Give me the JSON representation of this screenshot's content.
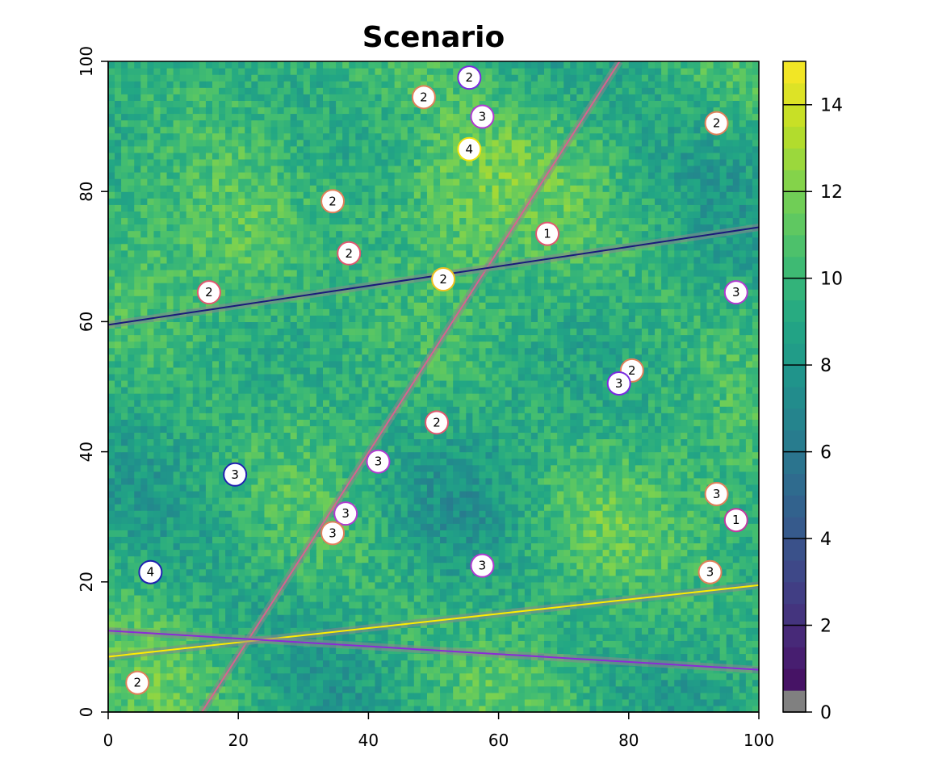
{
  "title": "Scenario",
  "chart_data": {
    "type": "heatmap",
    "title": "Scenario",
    "xlim": [
      0,
      100
    ],
    "ylim": [
      0,
      100
    ],
    "x_ticks": [
      0,
      20,
      40,
      60,
      80,
      100
    ],
    "y_ticks": [
      0,
      20,
      40,
      60,
      80,
      100
    ],
    "raster": {
      "description_colormap": "viridis",
      "value_range": [
        0,
        15
      ],
      "colorbar_ticks": [
        0,
        2,
        4,
        6,
        8,
        10,
        12,
        14
      ],
      "colorbar_zero_color": "#808080"
    },
    "lines": [
      {
        "color": "#d7638f",
        "x": [
          14.4,
          78.6
        ],
        "y": [
          0,
          100
        ]
      },
      {
        "color": "#1a1a7a",
        "x": [
          0,
          100
        ],
        "y": [
          59.5,
          74.5
        ]
      },
      {
        "color": "#ffee00",
        "x": [
          0,
          100
        ],
        "y": [
          8.5,
          19.5
        ]
      },
      {
        "color": "#8a2bd6",
        "x": [
          0,
          100
        ],
        "y": [
          12.5,
          6.5
        ]
      }
    ],
    "points": [
      {
        "x": 55.5,
        "y": 97.5,
        "label": "2",
        "color": "#7b2ae0"
      },
      {
        "x": 48.5,
        "y": 94.5,
        "label": "2",
        "color": "#e0805a"
      },
      {
        "x": 57.5,
        "y": 91.5,
        "label": "3",
        "color": "#b03ad0"
      },
      {
        "x": 93.5,
        "y": 90.5,
        "label": "2",
        "color": "#e0805a"
      },
      {
        "x": 55.5,
        "y": 86.5,
        "label": "4",
        "color": "#f0e010"
      },
      {
        "x": 34.5,
        "y": 78.5,
        "label": "2",
        "color": "#e0805a"
      },
      {
        "x": 67.5,
        "y": 73.5,
        "label": "1",
        "color": "#e05870"
      },
      {
        "x": 37.0,
        "y": 70.5,
        "label": "2",
        "color": "#e05870"
      },
      {
        "x": 51.5,
        "y": 66.5,
        "label": "2",
        "color": "#f0c020"
      },
      {
        "x": 15.5,
        "y": 64.5,
        "label": "2",
        "color": "#e05870"
      },
      {
        "x": 96.5,
        "y": 64.5,
        "label": "3",
        "color": "#b03ad0"
      },
      {
        "x": 80.5,
        "y": 52.5,
        "label": "2",
        "color": "#e0805a"
      },
      {
        "x": 78.5,
        "y": 50.5,
        "label": "3",
        "color": "#7b2ae0"
      },
      {
        "x": 50.5,
        "y": 44.5,
        "label": "2",
        "color": "#e05870"
      },
      {
        "x": 41.5,
        "y": 38.5,
        "label": "3",
        "color": "#b03ad0"
      },
      {
        "x": 19.5,
        "y": 36.5,
        "label": "3",
        "color": "#2020b0"
      },
      {
        "x": 93.5,
        "y": 33.5,
        "label": "3",
        "color": "#e0805a"
      },
      {
        "x": 36.5,
        "y": 30.5,
        "label": "3",
        "color": "#b03ad0"
      },
      {
        "x": 96.5,
        "y": 29.5,
        "label": "1",
        "color": "#c03aa0"
      },
      {
        "x": 34.5,
        "y": 27.5,
        "label": "3",
        "color": "#e0805a"
      },
      {
        "x": 57.5,
        "y": 22.5,
        "label": "3",
        "color": "#b03ad0"
      },
      {
        "x": 6.5,
        "y": 21.5,
        "label": "4",
        "color": "#2020b0"
      },
      {
        "x": 92.5,
        "y": 21.5,
        "label": "3",
        "color": "#e0805a"
      },
      {
        "x": 4.5,
        "y": 4.5,
        "label": "2",
        "color": "#e0805a"
      }
    ]
  }
}
